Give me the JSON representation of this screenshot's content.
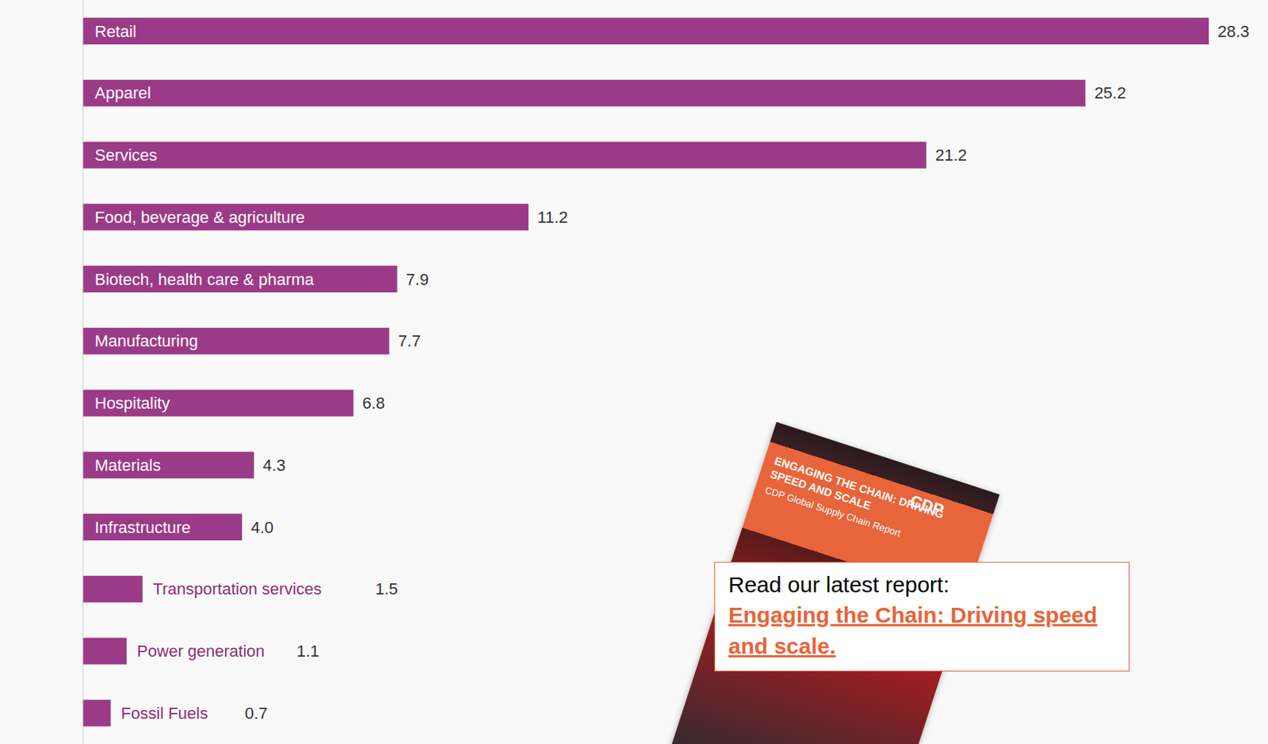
{
  "chart_data": {
    "type": "bar",
    "orientation": "horizontal",
    "categories": [
      "Retail",
      "Apparel",
      "Services",
      "Food, beverage & agriculture",
      "Biotech, health care & pharma",
      "Manufacturing",
      "Hospitality",
      "Materials",
      "Infrastructure",
      "Transportation services",
      "Power generation",
      "Fossil Fuels"
    ],
    "values": [
      28.3,
      25.2,
      21.2,
      11.2,
      7.9,
      7.7,
      6.8,
      4.3,
      4.0,
      1.5,
      1.1,
      0.7
    ],
    "value_labels": [
      "28.3",
      "25.2",
      "21.2",
      "11.2",
      "7.9",
      "7.7",
      "6.8",
      "4.3",
      "4.0",
      "1.5",
      "1.1",
      "0.7"
    ],
    "color": "#9b3b87",
    "xlim": [
      0,
      28.3
    ],
    "data_labels": true,
    "tick_labels": false,
    "grid": false
  },
  "callout": {
    "text": "Read our latest report:",
    "link": "Engaging the Chain: Driving speed and scale."
  },
  "cover": {
    "brand": "CDP",
    "title": "ENGAGING THE CHAIN: DRIVING SPEED AND SCALE",
    "subtitle": "CDP Global Supply Chain Report"
  }
}
